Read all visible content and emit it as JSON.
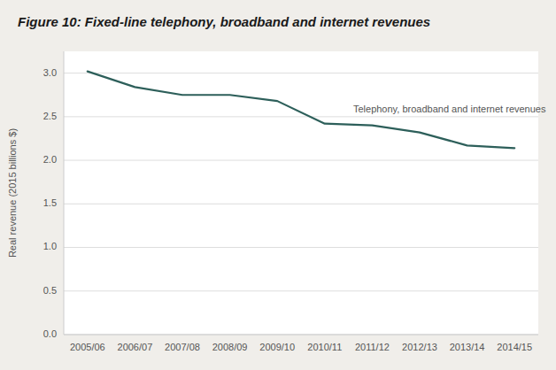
{
  "chart_data": {
    "type": "line",
    "title": "Figure 10: Fixed-line telephony, broadband and internet revenues",
    "ylabel": "Real revenue (2015 billions $)",
    "categories": [
      "2005/06",
      "2006/07",
      "2007/08",
      "2008/09",
      "2009/10",
      "2010/11",
      "2011/12",
      "2012/13",
      "2013/14",
      "2014/15"
    ],
    "values": [
      3.02,
      2.84,
      2.75,
      2.75,
      2.68,
      2.42,
      2.4,
      2.32,
      2.17,
      2.14
    ],
    "color": "#2d5f5a",
    "ylim": [
      0.0,
      3.25
    ],
    "yticks": [
      {
        "value": 0.0,
        "label": "0.0"
      },
      0.5,
      {
        "value": 1.0,
        "label": "1.0"
      },
      1.5,
      {
        "value": 2.0,
        "label": "2.0"
      },
      2.5,
      {
        "value": 3.0,
        "label": "3.0"
      }
    ],
    "grid": true,
    "annotations": [
      "Telephony, broadband and internet revenues"
    ]
  }
}
